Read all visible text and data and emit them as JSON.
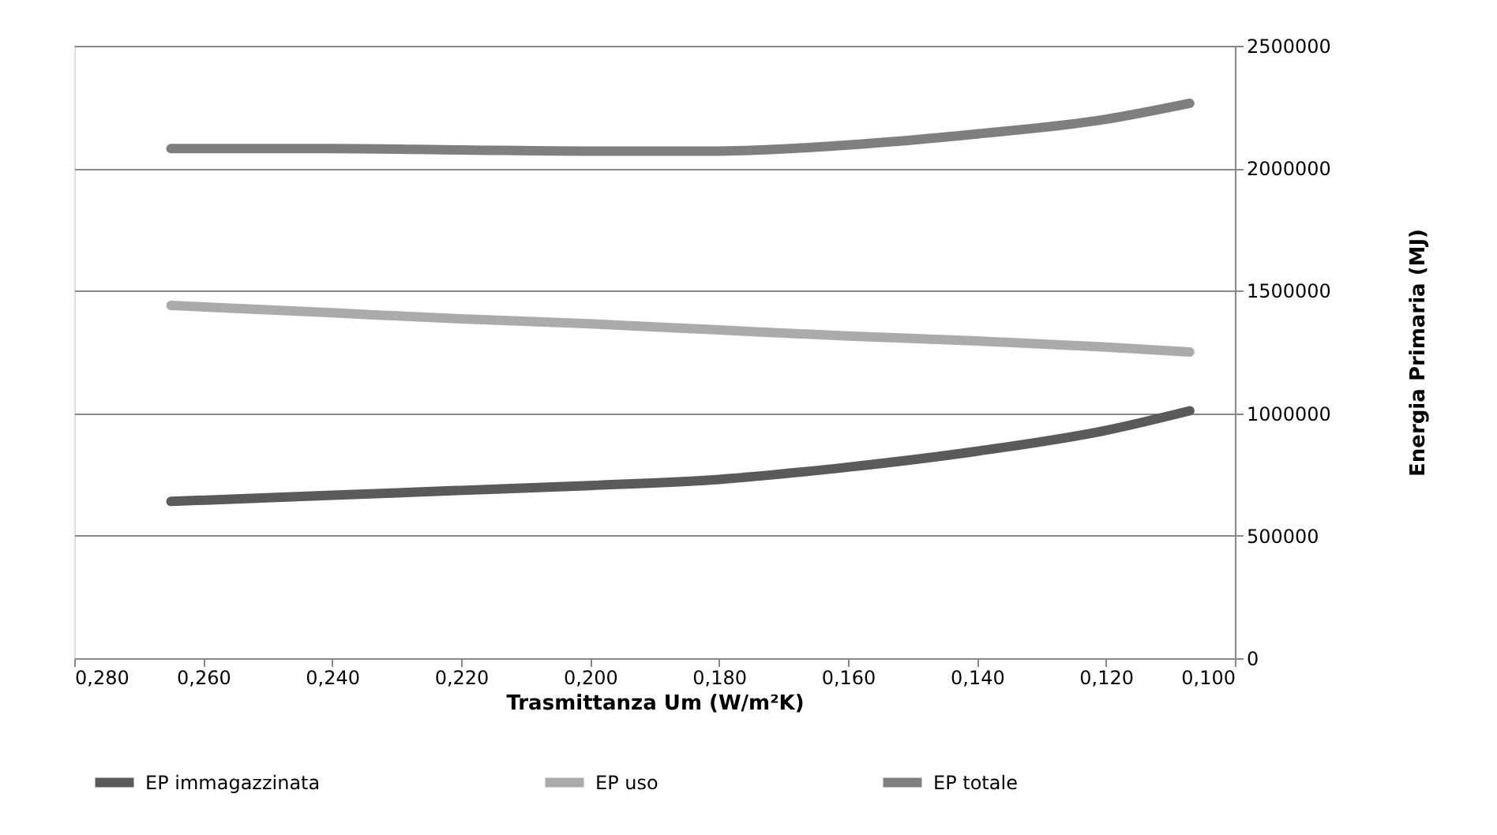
{
  "chart_data": {
    "type": "line",
    "xlabel": "Trasmittanza Um (W/m²K)",
    "ylabel": "Energia Primaria (MJ)",
    "x": [
      0.265,
      0.24,
      0.22,
      0.2,
      0.18,
      0.16,
      0.14,
      0.12,
      0.107
    ],
    "series": [
      {
        "name": "EP immagazzinata",
        "color": "#5a5a5a",
        "values": [
          640000,
          665000,
          685000,
          705000,
          730000,
          780000,
          845000,
          930000,
          1010000
        ]
      },
      {
        "name": "EP uso",
        "color": "#ababab",
        "values": [
          1440000,
          1410000,
          1385000,
          1365000,
          1340000,
          1315000,
          1295000,
          1270000,
          1250000
        ]
      },
      {
        "name": "EP totale",
        "color": "#7f7f7f",
        "values": [
          2080000,
          2080000,
          2075000,
          2070000,
          2070000,
          2095000,
          2140000,
          2200000,
          2265000
        ]
      }
    ],
    "xlim": [
      0.28,
      0.1
    ],
    "xticks": [
      {
        "value": 0.28,
        "label": "0,280"
      },
      {
        "value": 0.26,
        "label": "0,260"
      },
      {
        "value": 0.24,
        "label": "0,240"
      },
      {
        "value": 0.22,
        "label": "0,220"
      },
      {
        "value": 0.2,
        "label": "0,200"
      },
      {
        "value": 0.18,
        "label": "0,180"
      },
      {
        "value": 0.16,
        "label": "0,160"
      },
      {
        "value": 0.14,
        "label": "0,140"
      },
      {
        "value": 0.12,
        "label": "0,120"
      },
      {
        "value": 0.1,
        "label": "0,100"
      }
    ],
    "ylim": [
      0,
      2500000
    ],
    "yticks": [
      0,
      500000,
      1000000,
      1500000,
      2000000,
      2500000
    ],
    "grid": "y",
    "legend": "bottom",
    "marker": "none",
    "line_style": "solid"
  }
}
